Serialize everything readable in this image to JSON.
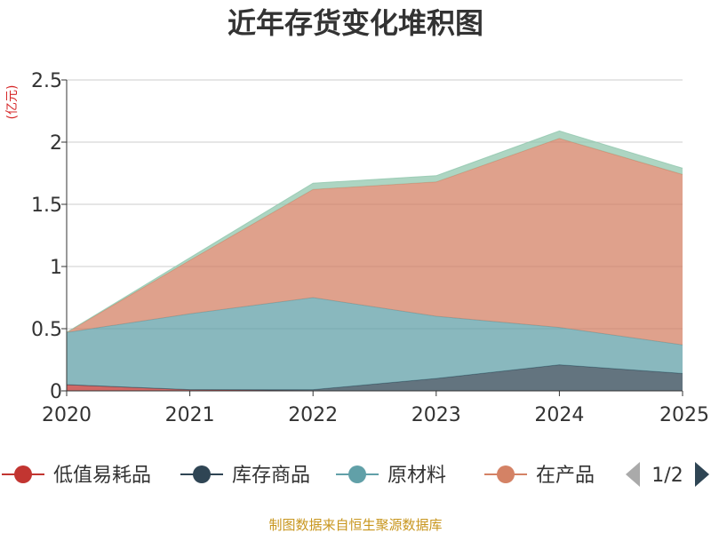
{
  "chart_data": {
    "type": "area",
    "stacked": true,
    "title": "近年存货变化堆积图",
    "ylabel": "(亿元)",
    "xlabel": "",
    "x": [
      "2020",
      "2021",
      "2022",
      "2023",
      "2024",
      "2025"
    ],
    "ylim": [
      0,
      2.5
    ],
    "yticks": [
      "0",
      "0.5",
      "1",
      "1.5",
      "2",
      "2.5"
    ],
    "grid": true,
    "series": [
      {
        "name": "低值易耗品",
        "color": "#c23531",
        "values": [
          0.05,
          0.01,
          0.0,
          0.0,
          0.0,
          0.0
        ]
      },
      {
        "name": "库存商品",
        "color": "#2f4554",
        "values": [
          0.0,
          0.0,
          0.01,
          0.1,
          0.21,
          0.14
        ]
      },
      {
        "name": "原材料",
        "color": "#61a0a8",
        "values": [
          0.42,
          0.61,
          0.74,
          0.5,
          0.3,
          0.23
        ]
      },
      {
        "name": "在产品",
        "color": "#d48265",
        "values": [
          0.0,
          0.43,
          0.87,
          1.08,
          1.52,
          1.37
        ]
      },
      {
        "name": "",
        "color": "#91c7ae",
        "values": [
          0.0,
          0.02,
          0.05,
          0.05,
          0.06,
          0.05
        ]
      }
    ],
    "legend_position": "bottom",
    "legend_page": "1/2"
  },
  "source_note": "制图数据来自恒生聚源数据库"
}
